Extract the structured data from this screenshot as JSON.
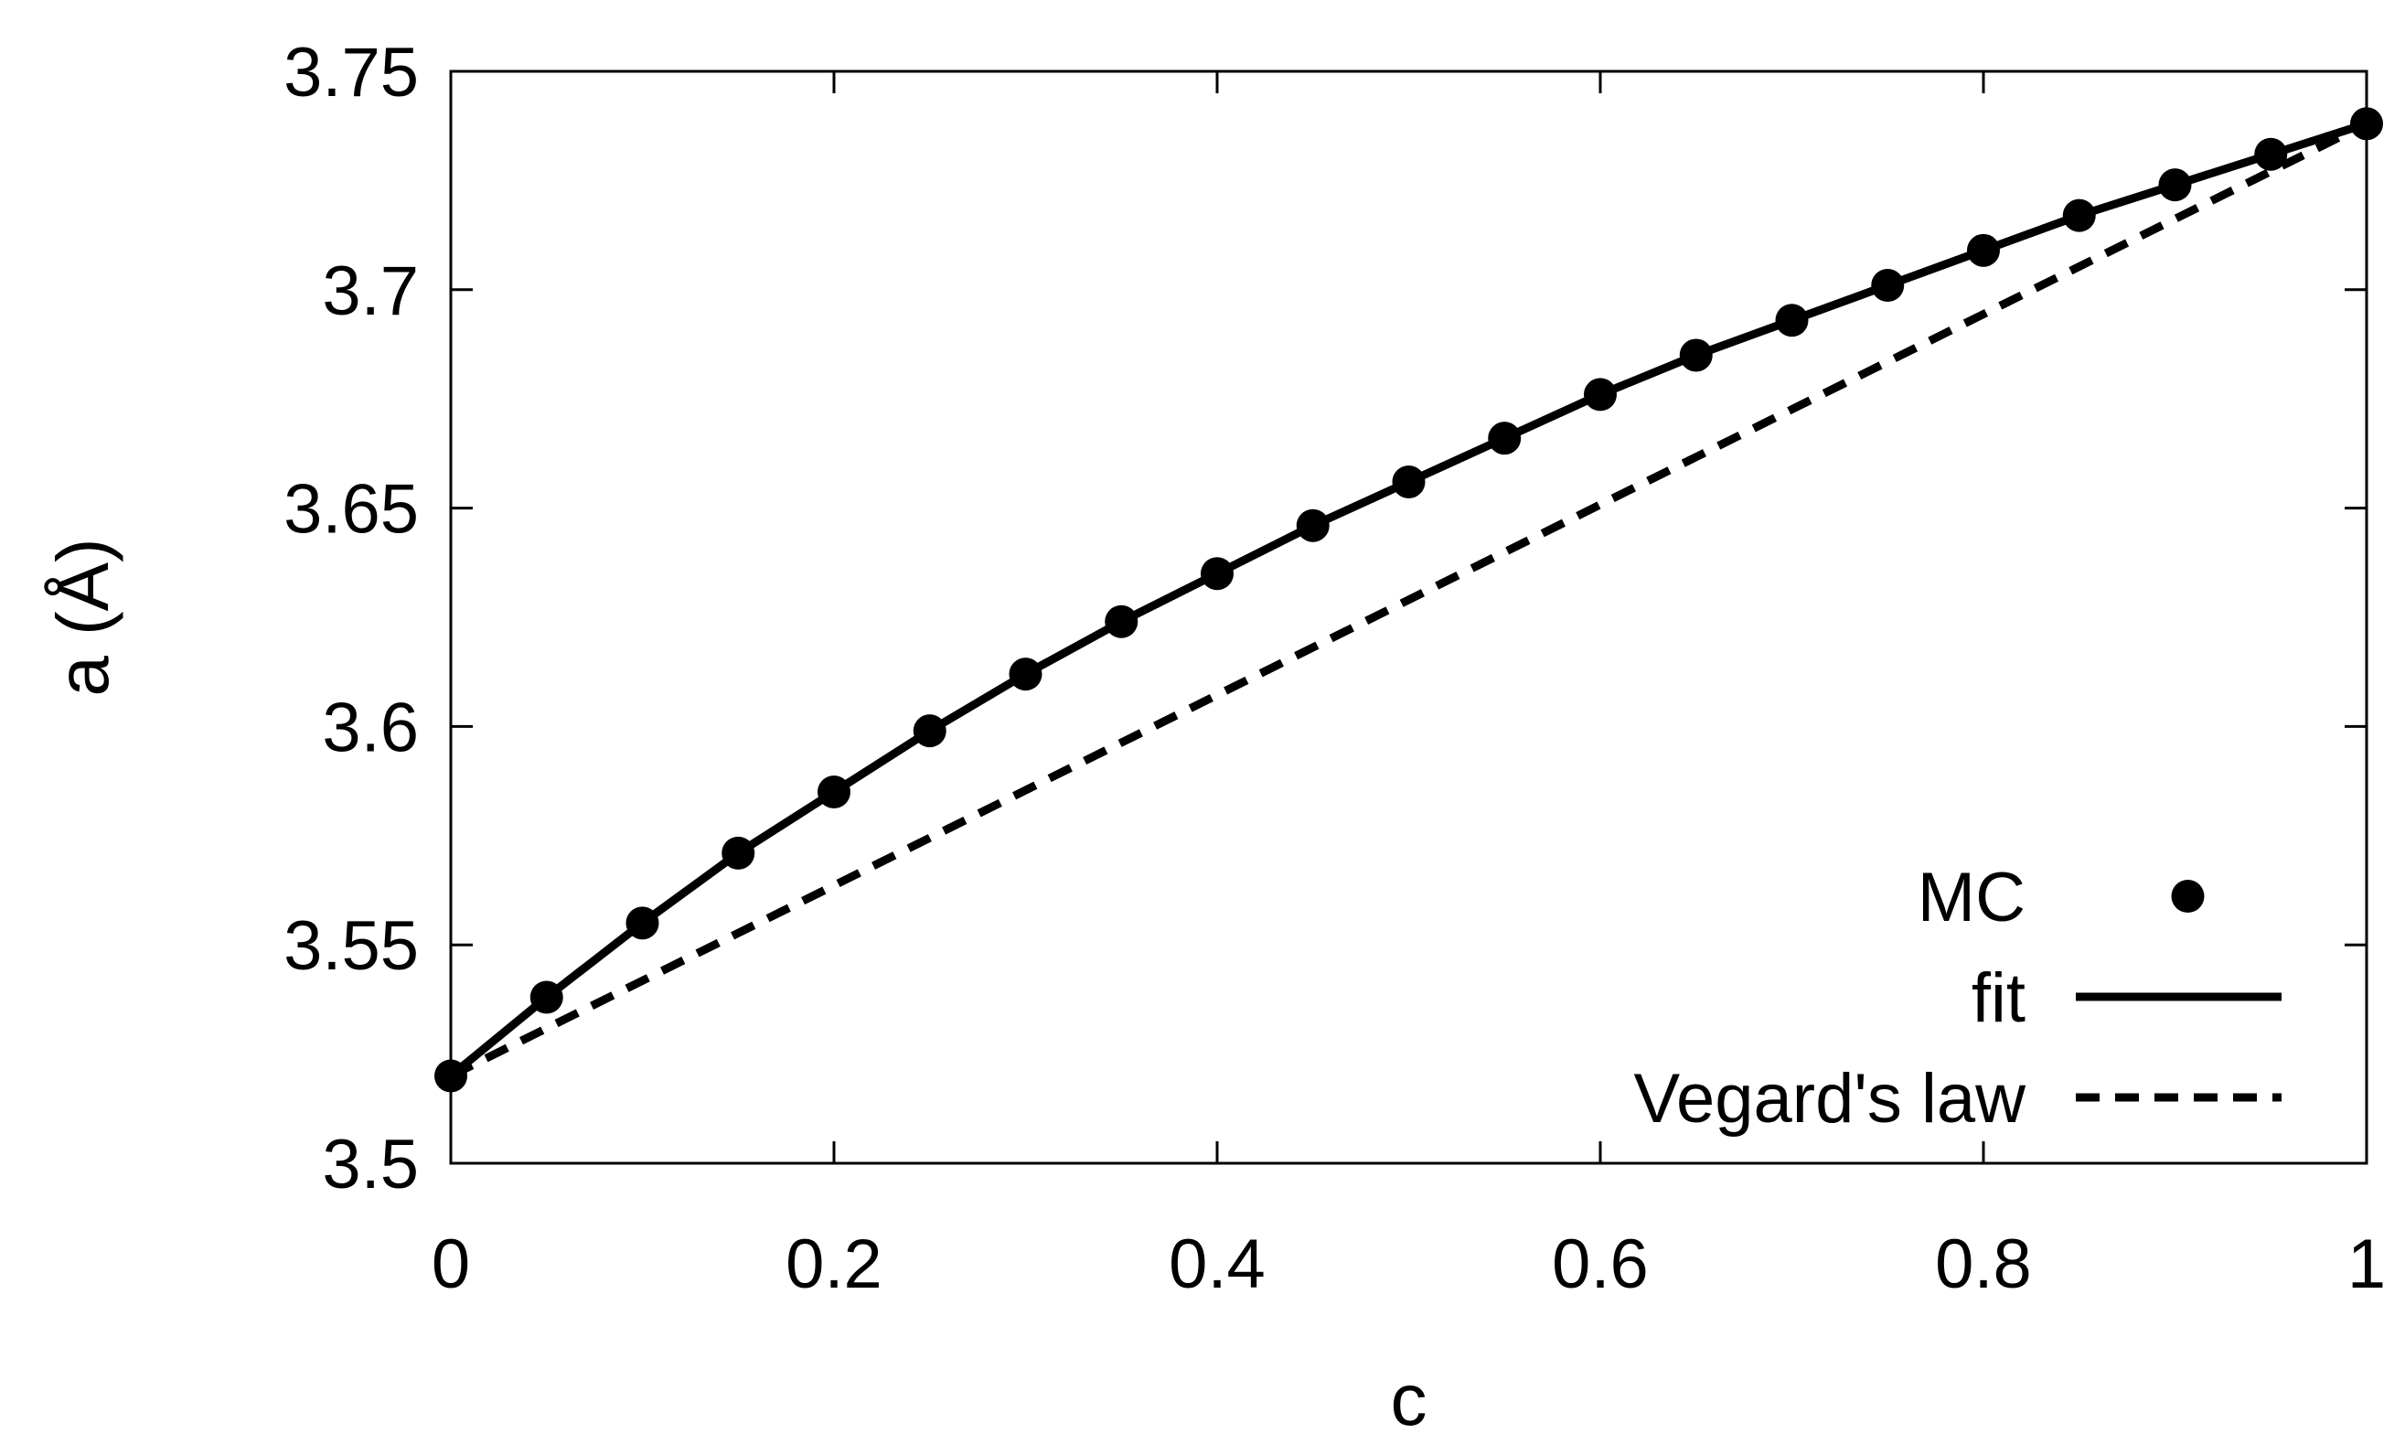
{
  "chart_data": {
    "type": "line",
    "title": "",
    "xlabel": "c",
    "ylabel": "a (Å)",
    "xlim": [
      0,
      1
    ],
    "ylim": [
      3.5,
      3.75
    ],
    "xticks": [
      0,
      0.2,
      0.4,
      0.6,
      0.8,
      1
    ],
    "xtick_labels": [
      "0",
      "0.2",
      "0.4",
      "0.6",
      "0.8",
      "1"
    ],
    "yticks": [
      3.5,
      3.55,
      3.6,
      3.65,
      3.7,
      3.75
    ],
    "ytick_labels": [
      "3.5",
      "3.55",
      "3.6",
      "3.65",
      "3.7",
      "3.75"
    ],
    "grid": false,
    "legend_position": "bottom-right",
    "series": [
      {
        "name": "MC",
        "style": "markers",
        "color": "#000000",
        "x": [
          0,
          0.05,
          0.1,
          0.15,
          0.2,
          0.25,
          0.3,
          0.35,
          0.4,
          0.45,
          0.5,
          0.55,
          0.6,
          0.65,
          0.7,
          0.75,
          0.8,
          0.85,
          0.9,
          0.95,
          1.0
        ],
        "y": [
          3.52,
          3.538,
          3.555,
          3.571,
          3.585,
          3.599,
          3.612,
          3.624,
          3.635,
          3.646,
          3.656,
          3.666,
          3.676,
          3.685,
          3.693,
          3.701,
          3.709,
          3.717,
          3.724,
          3.731,
          3.738
        ]
      },
      {
        "name": "fit",
        "style": "solid",
        "color": "#000000",
        "x": [
          0,
          0.05,
          0.1,
          0.15,
          0.2,
          0.25,
          0.3,
          0.35,
          0.4,
          0.45,
          0.5,
          0.55,
          0.6,
          0.65,
          0.7,
          0.75,
          0.8,
          0.85,
          0.9,
          0.95,
          1.0
        ],
        "y": [
          3.52,
          3.538,
          3.555,
          3.571,
          3.585,
          3.599,
          3.612,
          3.624,
          3.635,
          3.646,
          3.656,
          3.666,
          3.676,
          3.685,
          3.693,
          3.701,
          3.709,
          3.717,
          3.724,
          3.731,
          3.738
        ]
      },
      {
        "name": "Vegard's law",
        "style": "dashed",
        "color": "#000000",
        "x": [
          0,
          1
        ],
        "y": [
          3.52,
          3.738
        ]
      }
    ]
  }
}
